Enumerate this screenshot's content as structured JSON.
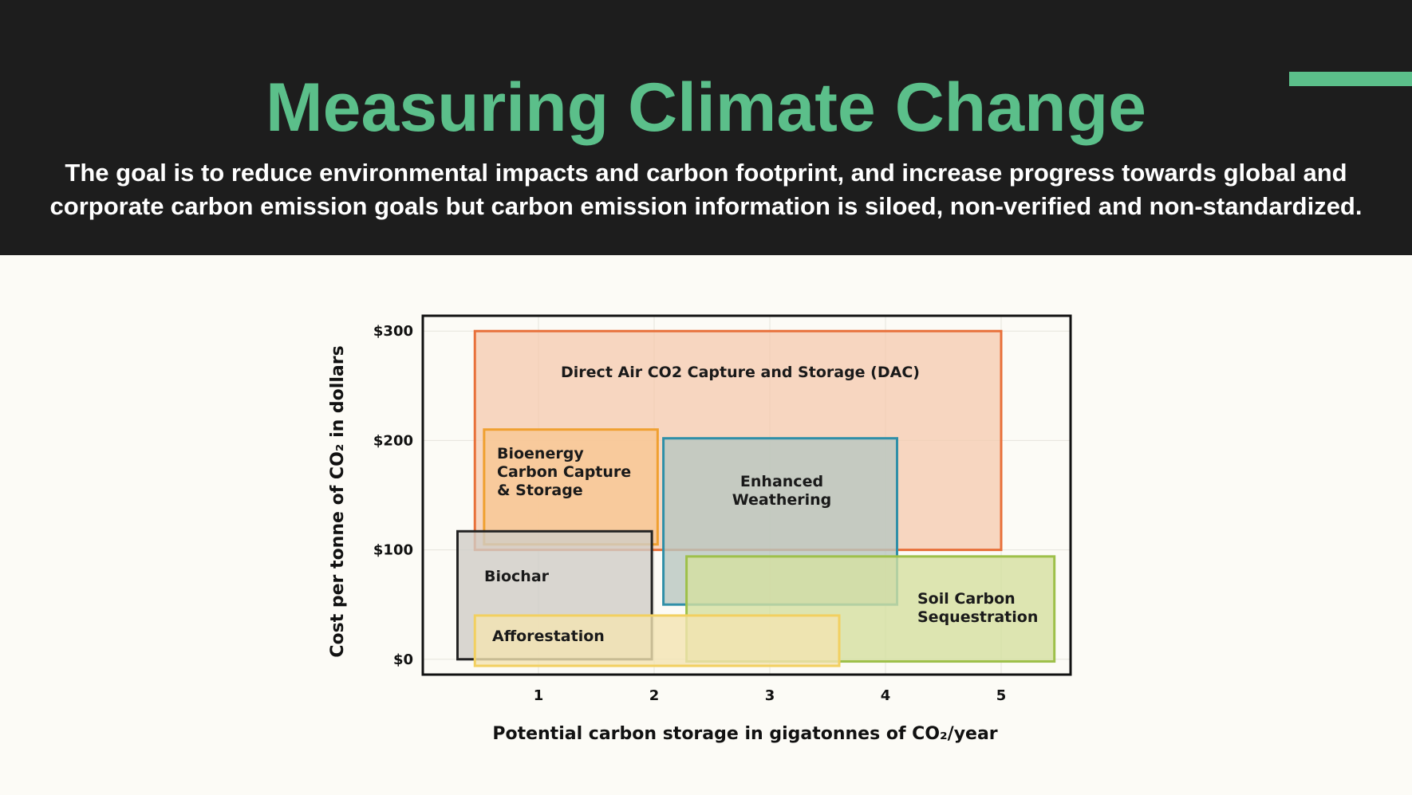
{
  "slide": {
    "title": "Measuring Climate Change",
    "subtitle": "The goal is to reduce environmental impacts and carbon footprint, and increase progress towards global and corporate carbon emission goals but carbon emission information is siloed, non-verified and non-standardized.",
    "accent_color": "#5bbf8a",
    "header_bg": "#1d1d1d"
  },
  "chart_data": {
    "type": "range-box",
    "xlabel": "Potential carbon storage in gigatonnes of CO₂/year",
    "ylabel": "Cost per tonne of CO₂ in dollars",
    "xticks": [
      {
        "value": 1,
        "label": "1"
      },
      {
        "value": 2,
        "label": "2"
      },
      {
        "value": 3,
        "label": "3"
      },
      {
        "value": 4,
        "label": "4"
      },
      {
        "value": 5,
        "label": "5"
      }
    ],
    "yticks": [
      {
        "value": 0,
        "label": "$0"
      },
      {
        "value": 100,
        "label": "$100"
      },
      {
        "value": 200,
        "label": "$200"
      },
      {
        "value": 300,
        "label": "$300"
      }
    ],
    "xlim": [
      0,
      5.6
    ],
    "ylim": [
      -14,
      314
    ],
    "grid": true,
    "series": [
      {
        "name": "Direct Air CO2 Capture and Storage (DAC)",
        "x_range": [
          0.45,
          5.0
        ],
        "y_range": [
          100,
          300
        ],
        "color": "#e8703a",
        "fill": "#f5c9ae"
      },
      {
        "name": "Bioenergy Carbon Capture & Storage",
        "x_range": [
          0.53,
          2.03
        ],
        "y_range": [
          105,
          210
        ],
        "color": "#f0a030",
        "fill": "#f7c792"
      },
      {
        "name": "Enhanced Weathering",
        "x_range": [
          2.08,
          4.1
        ],
        "y_range": [
          50,
          202
        ],
        "color": "#2f8fa8",
        "fill": "#b8c7c0"
      },
      {
        "name": "Soil Carbon Sequestration",
        "x_range": [
          2.28,
          5.46
        ],
        "y_range": [
          -2,
          94
        ],
        "color": "#9ec04a",
        "fill": "#d4e0a0"
      },
      {
        "name": "Biochar",
        "x_range": [
          0.3,
          1.98
        ],
        "y_range": [
          0,
          117
        ],
        "color": "#222222",
        "fill": "#cfcdc7"
      },
      {
        "name": "Afforestation",
        "x_range": [
          0.45,
          3.6
        ],
        "y_range": [
          -6,
          40
        ],
        "color": "#f2d060",
        "fill": "#f3e4b2"
      }
    ]
  }
}
